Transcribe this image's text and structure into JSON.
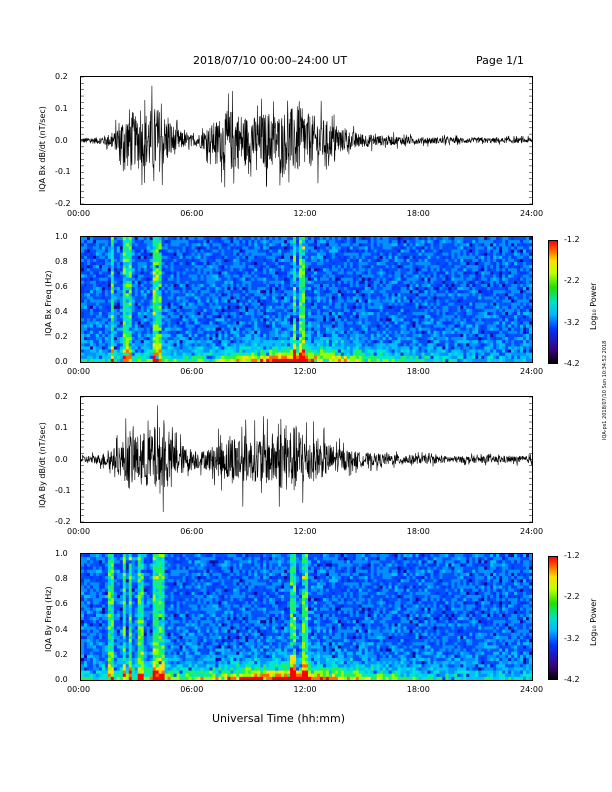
{
  "header": {
    "title": "2018/07/10  00:00–24:00 UT",
    "page": "Page 1/1"
  },
  "xlabel": "Universal Time (hh:mm)",
  "side_note": "IQA-ps1 2018/07/10 Sun 10:34:52 2018",
  "x_ticks": [
    "00:00",
    "06:00",
    "12:00",
    "18:00",
    "24:00"
  ],
  "chart_data": [
    {
      "type": "line",
      "ylabel": "IQA Bx dB/dt (nT/sec)",
      "ylim": [
        -0.2,
        0.2
      ],
      "y_ticks": [
        "0.2",
        "0.1",
        "0.0",
        "-0.1",
        "-0.2"
      ],
      "xlim_hours": [
        0,
        24
      ],
      "envelope": {
        "x_hours": [
          0,
          1,
          1.8,
          2,
          2.5,
          2.6,
          3,
          3.5,
          4,
          4.2,
          4.5,
          5,
          5.5,
          6,
          6.5,
          7,
          7.5,
          8,
          8.5,
          9,
          9.5,
          10,
          10.5,
          11,
          11.5,
          12,
          12.5,
          13,
          13.5,
          14,
          15,
          16,
          17,
          18,
          20,
          22,
          24
        ],
        "amplitude": [
          0.015,
          0.02,
          0.05,
          0.12,
          0.16,
          0.2,
          0.12,
          0.17,
          0.2,
          0.18,
          0.14,
          0.08,
          0.04,
          0.03,
          0.05,
          0.1,
          0.14,
          0.18,
          0.16,
          0.13,
          0.15,
          0.17,
          0.15,
          0.18,
          0.2,
          0.16,
          0.14,
          0.12,
          0.09,
          0.06,
          0.04,
          0.03,
          0.025,
          0.02,
          0.017,
          0.015,
          0.015
        ]
      }
    },
    {
      "type": "heatmap",
      "ylabel": "IQA Bx Freq (Hz)",
      "ylim": [
        0.0,
        1.0
      ],
      "y_ticks": [
        "1.0",
        "0.8",
        "0.6",
        "0.4",
        "0.2",
        "0.0"
      ],
      "colorbar": {
        "label": "Log₁₀ Power",
        "ticks": [
          "-1.2",
          "-2.2",
          "-3.2",
          "-4.2"
        ],
        "range": [
          -4.2,
          -1.2
        ]
      },
      "activity": {
        "x_hours": [
          0,
          2,
          4,
          6,
          8,
          10,
          11,
          12,
          14,
          16,
          18,
          20,
          22,
          24
        ],
        "low_freq_power": [
          0.2,
          0.35,
          0.45,
          0.3,
          0.5,
          0.7,
          0.85,
          0.75,
          0.55,
          0.4,
          0.3,
          0.2,
          0.15,
          0.15
        ]
      },
      "streaks_hours": [
        1.7,
        2.4,
        2.6,
        4.0,
        4.2,
        11.4,
        11.8
      ]
    },
    {
      "type": "line",
      "ylabel": "IQA By dB/dt (nT/sec)",
      "ylim": [
        -0.2,
        0.2
      ],
      "y_ticks": [
        "0.2",
        "0.1",
        "0.0",
        "-0.1",
        "-0.2"
      ],
      "xlim_hours": [
        0,
        24
      ],
      "envelope": {
        "x_hours": [
          0,
          1,
          1.8,
          2.3,
          2.6,
          3,
          3.5,
          4,
          4.3,
          4.8,
          5.5,
          6,
          6.5,
          7,
          7.5,
          8,
          8.5,
          9,
          9.5,
          10,
          10.5,
          11,
          11.5,
          12,
          12.5,
          13,
          13.5,
          14,
          15,
          16,
          17,
          18,
          20,
          22,
          24
        ],
        "amplitude": [
          0.02,
          0.03,
          0.07,
          0.12,
          0.18,
          0.14,
          0.17,
          0.2,
          0.2,
          0.12,
          0.08,
          0.06,
          0.05,
          0.08,
          0.11,
          0.14,
          0.16,
          0.12,
          0.14,
          0.15,
          0.17,
          0.19,
          0.2,
          0.15,
          0.12,
          0.1,
          0.08,
          0.06,
          0.04,
          0.035,
          0.03,
          0.025,
          0.02,
          0.02,
          0.02
        ]
      }
    },
    {
      "type": "heatmap",
      "ylabel": "IQA By Freq (Hz)",
      "ylim": [
        0.0,
        1.0
      ],
      "y_ticks": [
        "1.0",
        "0.8",
        "0.6",
        "0.4",
        "0.2",
        "0.0"
      ],
      "colorbar": {
        "label": "Log₁₀ Power",
        "ticks": [
          "-1.2",
          "-2.2",
          "-3.2",
          "-4.2"
        ],
        "range": [
          -4.2,
          -1.2
        ]
      },
      "activity": {
        "x_hours": [
          0,
          2,
          4,
          6,
          8,
          10,
          11,
          12,
          14,
          16,
          18,
          20,
          22,
          24
        ],
        "low_freq_power": [
          0.25,
          0.4,
          0.55,
          0.45,
          0.65,
          0.8,
          0.9,
          0.8,
          0.6,
          0.45,
          0.35,
          0.25,
          0.2,
          0.2
        ]
      },
      "streaks_hours": [
        1.6,
        2.3,
        2.6,
        3.2,
        4.0,
        4.3,
        11.3,
        11.9
      ]
    }
  ]
}
